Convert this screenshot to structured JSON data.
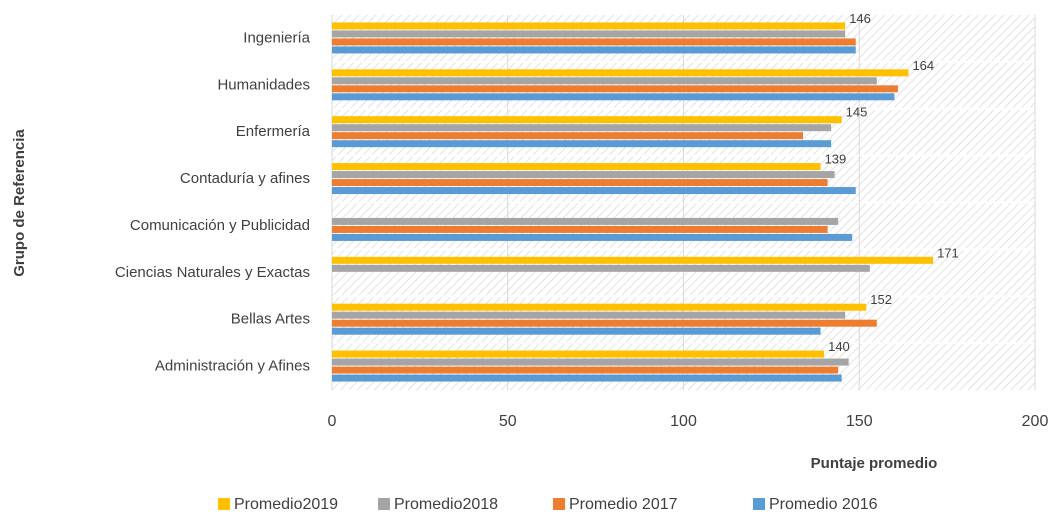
{
  "chart_data": {
    "type": "bar",
    "orientation": "horizontal",
    "categories": [
      "Administración y Afines",
      "Bellas Artes",
      "Ciencias Naturales y Exactas",
      "Comunicación y Publicidad",
      "Contaduría y afines",
      "Enfermería",
      "Humanidades",
      "Ingeniería"
    ],
    "series": [
      {
        "name": "Promedio2019",
        "color": "#ffc000",
        "values": [
          140,
          152,
          171,
          null,
          139,
          145,
          164,
          146
        ],
        "data_labels": true
      },
      {
        "name": "Promedio2018",
        "color": "#a5a5a5",
        "values": [
          147,
          146,
          153,
          144,
          143,
          142,
          155,
          146
        ]
      },
      {
        "name": "Promedio 2017",
        "color": "#ed7d31",
        "values": [
          144,
          155,
          null,
          141,
          141,
          134,
          161,
          149
        ]
      },
      {
        "name": "Promedio 2016",
        "color": "#5b9bd5",
        "values": [
          145,
          139,
          null,
          148,
          149,
          142,
          160,
          149
        ]
      }
    ],
    "xlim": [
      0,
      200
    ],
    "xticks": [
      0,
      50,
      100,
      150,
      200
    ],
    "grid": true,
    "xlabel": "Puntaje promedio",
    "ylabel": "Grupo de Referencia",
    "legend": "bottom"
  }
}
